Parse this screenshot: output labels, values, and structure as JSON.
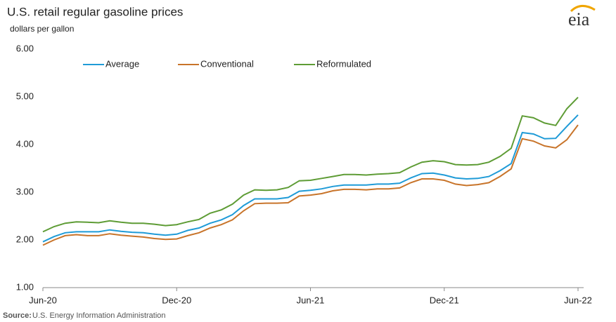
{
  "chart_data": {
    "type": "line",
    "title": "U.S. retail regular gasoline prices",
    "subtitle": "dollars per gallon",
    "logo": "eia",
    "source_label": "Source:",
    "source": "U.S. Energy Information Administration",
    "categories": [
      "Jun-20",
      null,
      null,
      null,
      null,
      null,
      null,
      null,
      null,
      null,
      null,
      null,
      "Dec-20",
      null,
      null,
      null,
      null,
      null,
      null,
      null,
      null,
      null,
      null,
      null,
      "Jun-21",
      null,
      null,
      null,
      null,
      null,
      null,
      null,
      null,
      null,
      null,
      null,
      "Dec-21",
      null,
      null,
      null,
      null,
      null,
      null,
      null,
      null,
      null,
      null,
      null,
      "Jun-22"
    ],
    "series": [
      {
        "name": "Average",
        "color": "#1f9bd7",
        "values": [
          1.96,
          2.07,
          2.15,
          2.17,
          2.17,
          2.17,
          2.21,
          2.18,
          2.16,
          2.15,
          2.12,
          2.1,
          2.12,
          2.2,
          2.25,
          2.35,
          2.42,
          2.53,
          2.72,
          2.86,
          2.86,
          2.86,
          2.89,
          3.02,
          3.04,
          3.07,
          3.12,
          3.15,
          3.15,
          3.15,
          3.17,
          3.17,
          3.19,
          3.3,
          3.39,
          3.4,
          3.36,
          3.3,
          3.28,
          3.29,
          3.33,
          3.45,
          3.6,
          4.25,
          4.22,
          4.12,
          4.13,
          4.38,
          4.62
        ]
      },
      {
        "name": "Conventional",
        "color": "#c8742a",
        "values": [
          1.89,
          2.0,
          2.09,
          2.11,
          2.09,
          2.09,
          2.13,
          2.1,
          2.08,
          2.06,
          2.03,
          2.01,
          2.02,
          2.09,
          2.15,
          2.25,
          2.32,
          2.42,
          2.61,
          2.76,
          2.77,
          2.77,
          2.78,
          2.92,
          2.94,
          2.97,
          3.03,
          3.06,
          3.06,
          3.05,
          3.07,
          3.07,
          3.09,
          3.2,
          3.28,
          3.28,
          3.25,
          3.17,
          3.14,
          3.16,
          3.2,
          3.33,
          3.49,
          4.12,
          4.07,
          3.97,
          3.93,
          4.1,
          4.41
        ]
      },
      {
        "name": "Reformulated",
        "color": "#5e9c35",
        "values": [
          2.17,
          2.28,
          2.35,
          2.38,
          2.37,
          2.36,
          2.4,
          2.37,
          2.35,
          2.35,
          2.33,
          2.3,
          2.32,
          2.38,
          2.43,
          2.56,
          2.63,
          2.75,
          2.94,
          3.05,
          3.04,
          3.05,
          3.1,
          3.24,
          3.25,
          3.29,
          3.33,
          3.37,
          3.37,
          3.36,
          3.38,
          3.39,
          3.41,
          3.53,
          3.63,
          3.66,
          3.64,
          3.58,
          3.57,
          3.58,
          3.63,
          3.75,
          3.92,
          4.6,
          4.56,
          4.45,
          4.4,
          4.75,
          4.99
        ]
      }
    ],
    "ylim": [
      1,
      6
    ],
    "yticks": [
      {
        "value": 1,
        "label": "1.00"
      },
      {
        "value": 2,
        "label": "2.00"
      },
      {
        "value": 3,
        "label": "3.00"
      },
      {
        "value": 4,
        "label": "4.00"
      },
      {
        "value": 5,
        "label": "5.00"
      },
      {
        "value": 6,
        "label": "6.00"
      }
    ],
    "grid": false,
    "legend": "top-left"
  }
}
